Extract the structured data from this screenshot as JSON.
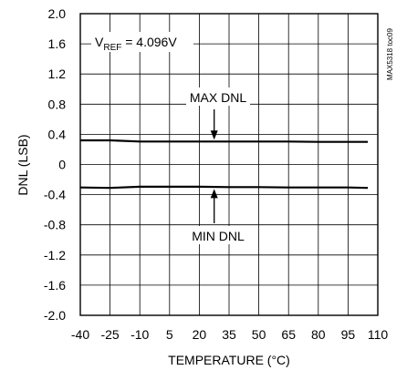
{
  "chart_data": {
    "type": "line",
    "title": "",
    "xlabel": "TEMPERATURE (°C)",
    "ylabel": "DNL (LSB)",
    "xlim": [
      -40,
      110
    ],
    "ylim": [
      -2.0,
      2.0
    ],
    "x_ticks": [
      -40,
      -25,
      -10,
      5,
      20,
      35,
      50,
      65,
      80,
      95,
      110
    ],
    "y_ticks": [
      2.0,
      1.6,
      1.2,
      0.8,
      0.4,
      0,
      -0.4,
      -0.8,
      -1.2,
      -1.6,
      -2.0
    ],
    "x_tick_labels": [
      "-40",
      "-25",
      "-10",
      "5",
      "20",
      "35",
      "50",
      "65",
      "80",
      "95",
      "110"
    ],
    "y_tick_labels": [
      "2.0",
      "1.6",
      "1.2",
      "0.8",
      "0.4",
      "0",
      "-0.4",
      "-0.8",
      "-1.2",
      "-1.6",
      "-2.0"
    ],
    "grid": true,
    "series": [
      {
        "name": "MAX DNL",
        "x": [
          -40,
          -25,
          -10,
          5,
          20,
          35,
          50,
          65,
          80,
          95,
          105
        ],
        "y": [
          0.32,
          0.32,
          0.305,
          0.305,
          0.305,
          0.305,
          0.305,
          0.305,
          0.3,
          0.3,
          0.3
        ]
      },
      {
        "name": "MIN DNL",
        "x": [
          -40,
          -25,
          -10,
          5,
          20,
          35,
          50,
          65,
          80,
          95,
          105
        ],
        "y": [
          -0.305,
          -0.31,
          -0.295,
          -0.295,
          -0.295,
          -0.3,
          -0.3,
          -0.305,
          -0.305,
          -0.305,
          -0.31
        ]
      }
    ],
    "annotations": {
      "vref_prefix": "V",
      "vref_sub": "REF",
      "vref_value": " = 4.096V",
      "max_label": "MAX DNL",
      "min_label": "MIN DNL",
      "figure_id": "MAX5318 toc09"
    }
  }
}
